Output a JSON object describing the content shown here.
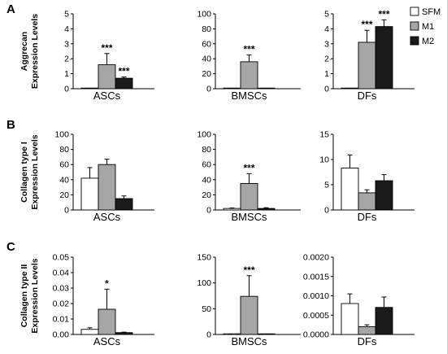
{
  "legend": [
    {
      "name": "SFM",
      "color": "#ffffff"
    },
    {
      "name": "M1",
      "color": "#a6a6a6"
    },
    {
      "name": "M2",
      "color": "#1a1a1a"
    }
  ],
  "panels": [
    {
      "letter": "A",
      "ylabel": [
        "Aggrecan",
        "Expression Levels"
      ]
    },
    {
      "letter": "B",
      "ylabel": [
        "Collagen type I",
        "Expression Levels"
      ]
    },
    {
      "letter": "C",
      "ylabel": [
        "Collagen type II",
        "Expression Levels"
      ]
    }
  ],
  "chart_data": [
    {
      "type": "bar",
      "row": "A",
      "xlabel": "ASCs",
      "ylim": [
        0,
        5
      ],
      "yticks": [
        "0",
        "1",
        "2",
        "3",
        "4",
        "5"
      ],
      "categories": [
        "SFM",
        "M1",
        "M2"
      ],
      "values": [
        0.02,
        1.6,
        0.7
      ],
      "errors": [
        0.02,
        0.75,
        0.08
      ],
      "annotations": [
        "",
        "***",
        "***"
      ]
    },
    {
      "type": "bar",
      "row": "A",
      "xlabel": "BMSCs",
      "ylim": [
        0,
        100
      ],
      "yticks": [
        "0",
        "20",
        "40",
        "60",
        "80",
        "100"
      ],
      "categories": [
        "SFM",
        "M1",
        "M2"
      ],
      "values": [
        0.5,
        36,
        0.5
      ],
      "errors": [
        0.2,
        9,
        0.2
      ],
      "annotations": [
        "",
        "***",
        ""
      ]
    },
    {
      "type": "bar",
      "row": "A",
      "xlabel": "DFs",
      "ylim": [
        0,
        5
      ],
      "yticks": [
        "0",
        "1",
        "2",
        "3",
        "4",
        "5"
      ],
      "categories": [
        "SFM",
        "M1",
        "M2"
      ],
      "values": [
        0.02,
        3.1,
        4.15
      ],
      "errors": [
        0.02,
        0.8,
        0.45
      ],
      "annotations": [
        "",
        "***",
        "***"
      ]
    },
    {
      "type": "bar",
      "row": "B",
      "xlabel": "ASCs",
      "ylim": [
        0,
        100
      ],
      "yticks": [
        "0",
        "20",
        "40",
        "60",
        "80",
        "100"
      ],
      "categories": [
        "SFM",
        "M1",
        "M2"
      ],
      "values": [
        42,
        60,
        15
      ],
      "errors": [
        14,
        7,
        3.5
      ],
      "annotations": [
        "",
        "",
        ""
      ]
    },
    {
      "type": "bar",
      "row": "B",
      "xlabel": "BMSCs",
      "ylim": [
        0,
        100
      ],
      "yticks": [
        "0",
        "20",
        "40",
        "60",
        "80",
        "100"
      ],
      "categories": [
        "SFM",
        "M1",
        "M2"
      ],
      "values": [
        2,
        35,
        2
      ],
      "errors": [
        0.6,
        13,
        1
      ],
      "annotations": [
        "",
        "***",
        ""
      ]
    },
    {
      "type": "bar",
      "row": "B",
      "xlabel": "DFs",
      "ylim": [
        0,
        15
      ],
      "yticks": [
        "0",
        "5",
        "10",
        "15"
      ],
      "categories": [
        "SFM",
        "M1",
        "M2"
      ],
      "values": [
        8.3,
        3.4,
        5.8
      ],
      "errors": [
        2.6,
        0.6,
        1.2
      ],
      "annotations": [
        "",
        "",
        ""
      ]
    },
    {
      "type": "bar",
      "row": "C",
      "xlabel": "ASCs",
      "ylim": [
        0,
        0.05
      ],
      "yticks": [
        "0.00",
        "0.01",
        "0.02",
        "0.03",
        "0.04",
        "0.05"
      ],
      "categories": [
        "SFM",
        "M1",
        "M2"
      ],
      "values": [
        0.0033,
        0.0163,
        0.0012
      ],
      "errors": [
        0.001,
        0.013,
        0.0003
      ],
      "annotations": [
        "",
        "*",
        ""
      ]
    },
    {
      "type": "bar",
      "row": "C",
      "xlabel": "BMSCs",
      "ylim": [
        0,
        150
      ],
      "yticks": [
        "0",
        "50",
        "100",
        "150"
      ],
      "categories": [
        "SFM",
        "M1",
        "M2"
      ],
      "values": [
        0.5,
        74,
        0.5
      ],
      "errors": [
        0.2,
        40,
        0.2
      ],
      "annotations": [
        "",
        "***",
        ""
      ]
    },
    {
      "type": "bar",
      "row": "C",
      "xlabel": "DFs",
      "ylim": [
        0,
        0.002
      ],
      "yticks": [
        "0.0000",
        "0.0005",
        "0.0010",
        "0.0015",
        "0.0020"
      ],
      "categories": [
        "SFM",
        "M1",
        "M2"
      ],
      "values": [
        0.0008,
        0.0002,
        0.0007
      ],
      "errors": [
        0.00025,
        5e-05,
        0.00027
      ],
      "annotations": [
        "",
        "",
        ""
      ]
    }
  ]
}
